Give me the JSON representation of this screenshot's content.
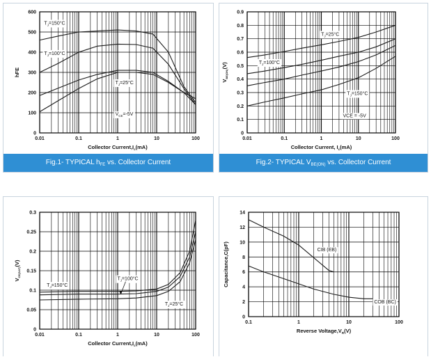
{
  "colors": {
    "caption_bg": "#2f8fd4",
    "line": "#1a1a1a"
  },
  "chart_data": [
    {
      "type": "line",
      "id": "fig1",
      "caption": {
        "prefix": "Fig.1- TYPICAL ",
        "main": "h",
        "sub": "FE",
        "suffix": " vs. Collector Current"
      },
      "xscale": "log",
      "xlim": [
        0.01,
        100
      ],
      "ylim": [
        0,
        600
      ],
      "xticks": [
        "0.01",
        "0.1",
        "1",
        "10",
        "100"
      ],
      "yticks": [
        "0",
        "100",
        "200",
        "300",
        "400",
        "500",
        "600"
      ],
      "ylabel": "hFE",
      "xlabel": {
        "main": "Collector  Current,I",
        "sub": "c",
        "tail": "(mA)"
      },
      "series": [
        {
          "name": "T=150°C",
          "x": [
            0.01,
            0.03,
            0.1,
            0.3,
            1,
            3,
            8,
            20,
            50,
            100
          ],
          "y": [
            460,
            480,
            500,
            505,
            510,
            505,
            490,
            400,
            230,
            150
          ]
        },
        {
          "name": "T=100°C",
          "x": [
            0.01,
            0.03,
            0.1,
            0.3,
            1,
            3,
            8,
            20,
            50,
            100
          ],
          "y": [
            300,
            345,
            400,
            430,
            440,
            438,
            420,
            340,
            220,
            140
          ]
        },
        {
          "name": "T=25°C",
          "x": [
            0.01,
            0.03,
            0.1,
            0.3,
            1,
            3,
            8,
            20,
            50,
            100
          ],
          "y": [
            185,
            222,
            262,
            290,
            310,
            310,
            300,
            255,
            200,
            140
          ]
        },
        {
          "name": "VCE=-5V",
          "x": [
            0.01,
            0.03,
            0.1,
            0.3,
            1,
            3,
            8,
            20,
            50,
            100
          ],
          "y": [
            105,
            160,
            220,
            268,
            300,
            300,
            290,
            250,
            200,
            170
          ]
        }
      ],
      "annotations": [
        {
          "text": "T",
          "sub": "J",
          "tail": "=150°C",
          "x": 0.012,
          "y": 545
        },
        {
          "text": "T",
          "sub": "J",
          "tail": "=100°C",
          "x": 0.012,
          "y": 395
        },
        {
          "text": "T",
          "sub": "J",
          "tail": "=25°C",
          "x": 0.8,
          "y": 250
        },
        {
          "text": "V",
          "sub": "CE",
          "tail": "=-5V",
          "x": 0.8,
          "y": 95
        }
      ]
    },
    {
      "type": "line",
      "id": "fig2",
      "caption": {
        "prefix": "Fig.2- TYPICAL  ",
        "main": "V",
        "sub": "BE(ON)",
        "suffix": "  vs.  Collector  Current"
      },
      "xscale": "log",
      "xlim": [
        0.01,
        100
      ],
      "ylim": [
        0,
        0.9
      ],
      "xticks": [
        "0.01",
        "0.1",
        "1",
        "10",
        "100"
      ],
      "yticks": [
        "0",
        "0.1",
        "0.2",
        "0.3",
        "0.4",
        "0.5",
        "0.6",
        "0.7",
        "0.8",
        "0.9"
      ],
      "ylabel": {
        "main": "V",
        "sub": "BE(ON)",
        "tail": "(V)"
      },
      "xlabel": {
        "main": "Collector  Current, I",
        "sub": "c",
        "tail": "(mA)"
      },
      "series": [
        {
          "name": "T=25°C",
          "x": [
            0.01,
            0.03,
            0.1,
            0.3,
            1,
            3,
            10,
            30,
            100
          ],
          "y": [
            0.56,
            0.58,
            0.605,
            0.63,
            0.655,
            0.68,
            0.71,
            0.75,
            0.8
          ]
        },
        {
          "name": "T=100°C",
          "x": [
            0.01,
            0.03,
            0.1,
            0.3,
            1,
            3,
            10,
            30,
            100
          ],
          "y": [
            0.44,
            0.46,
            0.485,
            0.51,
            0.54,
            0.57,
            0.6,
            0.64,
            0.7
          ]
        },
        {
          "name": "T=150°C",
          "x": [
            0.01,
            0.03,
            0.1,
            0.3,
            1,
            3,
            10,
            30,
            100
          ],
          "y": [
            0.35,
            0.375,
            0.4,
            0.43,
            0.46,
            0.49,
            0.53,
            0.58,
            0.65
          ]
        },
        {
          "name": "VCE=-5V",
          "x": [
            0.01,
            0.03,
            0.1,
            0.3,
            1,
            3,
            10,
            30,
            100
          ],
          "y": [
            0.2,
            0.23,
            0.26,
            0.29,
            0.32,
            0.36,
            0.41,
            0.48,
            0.57
          ]
        }
      ],
      "annotations": [
        {
          "text": "T",
          "sub": "J",
          "tail": "=25°C",
          "x": 0.9,
          "y": 0.735
        },
        {
          "text": "T",
          "sub": "J",
          "tail": "=100°C",
          "x": 0.019,
          "y": 0.525
        },
        {
          "text": "T",
          "sub": "J",
          "tail": "=150°C",
          "x": 4.5,
          "y": 0.295
        },
        {
          "text": "VCE = -5V",
          "sub": "",
          "tail": "",
          "x": 3.5,
          "y": 0.13
        }
      ]
    },
    {
      "type": "line",
      "id": "fig3",
      "xscale": "log",
      "xlim": [
        0.01,
        100
      ],
      "ylim": [
        0,
        0.3
      ],
      "xticks": [
        "0.01",
        "0.1",
        "1",
        "10",
        "100"
      ],
      "yticks": [
        "0",
        "0.05",
        "0.1",
        "0.15",
        "0.2",
        "0.25",
        "0.3"
      ],
      "ylabel": {
        "main": "V",
        "sub": "CE(SAT)",
        "tail": "(V)"
      },
      "xlabel": {
        "main": "Collector Current,I",
        "sub": "c",
        "tail": "(mA)"
      },
      "series": [
        {
          "name": "T=150°C",
          "x": [
            0.01,
            0.1,
            1,
            3,
            10,
            20,
            40,
            70,
            100
          ],
          "y": [
            0.095,
            0.097,
            0.097,
            0.098,
            0.103,
            0.115,
            0.145,
            0.2,
            0.28
          ]
        },
        {
          "name": "T=100°C",
          "x": [
            0.01,
            0.1,
            1,
            3,
            10,
            20,
            40,
            70,
            100
          ],
          "y": [
            0.088,
            0.09,
            0.09,
            0.091,
            0.097,
            0.108,
            0.135,
            0.185,
            0.25
          ]
        },
        {
          "name": "T=25°C",
          "x": [
            0.01,
            0.1,
            1,
            3,
            10,
            20,
            40,
            70,
            100
          ],
          "y": [
            0.075,
            0.077,
            0.078,
            0.08,
            0.086,
            0.097,
            0.122,
            0.17,
            0.23
          ]
        }
      ],
      "annotations": [
        {
          "text": "T",
          "sub": "J",
          "tail": "=150°C",
          "x": 0.014,
          "y": 0.113
        },
        {
          "text": "T",
          "sub": "J",
          "tail": "=100°C",
          "x": 0.9,
          "y": 0.13
        },
        {
          "text": "T",
          "sub": "J",
          "tail": "=25°C",
          "x": 15,
          "y": 0.065
        }
      ]
    },
    {
      "type": "line",
      "id": "fig4",
      "xscale": "log",
      "xlim": [
        0.1,
        100
      ],
      "ylim": [
        0,
        14
      ],
      "xticks": [
        "0.1",
        "1",
        "10",
        "100"
      ],
      "yticks": [
        "0",
        "2",
        "4",
        "6",
        "8",
        "10",
        "12",
        "14"
      ],
      "ylabel": "Capacitance,C(pF)",
      "xlabel": {
        "main": "Reverse  Voltage,V",
        "sub": "R",
        "tail": "(V)"
      },
      "series": [
        {
          "name": "CIB (EB)",
          "x": [
            0.1,
            0.2,
            0.5,
            1,
            2,
            4,
            5
          ],
          "y": [
            13,
            12,
            10.8,
            9.6,
            7.9,
            6.2,
            6.0
          ]
        },
        {
          "name": "COB (BC)",
          "x": [
            0.1,
            0.2,
            0.5,
            1,
            2,
            5,
            10,
            20,
            30
          ],
          "y": [
            6.8,
            6.0,
            5.1,
            4.4,
            3.7,
            3.0,
            2.6,
            2.4,
            2.4
          ]
        }
      ],
      "annotations": [
        {
          "text": "CIB (EB)",
          "sub": "",
          "tail": "",
          "x": 2.2,
          "y": 9.0
        },
        {
          "text": "COB (BC)",
          "sub": "",
          "tail": "",
          "x": 30,
          "y": 2.0
        }
      ]
    }
  ]
}
